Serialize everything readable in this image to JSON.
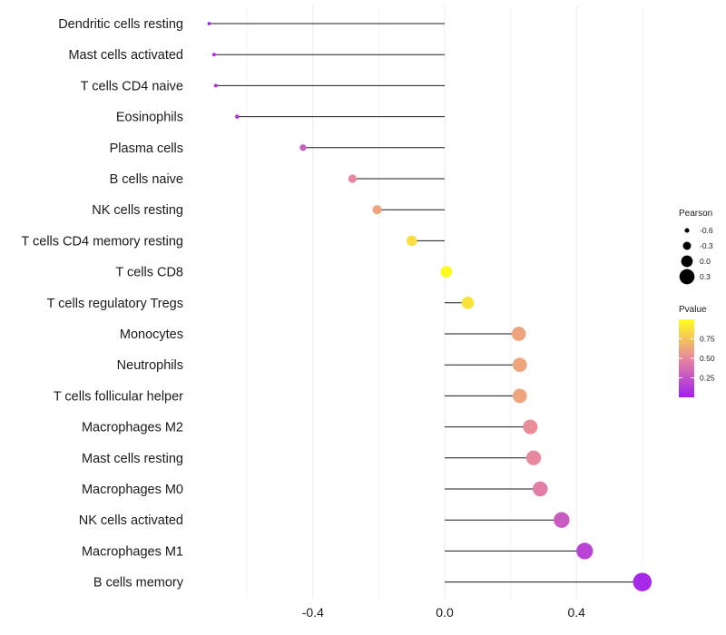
{
  "chart_data": {
    "type": "lollipop",
    "title": "",
    "xlabel": "",
    "ylabel": "",
    "xlim": [
      -0.82,
      0.62
    ],
    "x_ticks": [
      -0.4,
      0.0,
      0.4
    ],
    "x_tick_labels": [
      "-0.4",
      "0.0",
      "0.4"
    ],
    "grid": true,
    "categories": [
      "Dendritic cells resting",
      "Mast cells activated",
      "T cells CD4 naive",
      "Eosinophils",
      "Plasma cells",
      "B cells naive",
      "NK cells resting",
      "T cells CD4 memory resting",
      "T cells CD8",
      "T cells regulatory  Tregs",
      "Monocytes",
      "Neutrophils",
      "T cells follicular helper",
      "Macrophages M2",
      "Mast cells resting",
      "Macrophages M0",
      "NK cells activated",
      "Macrophages M1",
      "B cells memory"
    ],
    "pearson": [
      -0.715,
      -0.7,
      -0.695,
      -0.63,
      -0.43,
      -0.28,
      -0.205,
      -0.1,
      0.005,
      0.07,
      0.225,
      0.228,
      0.228,
      0.26,
      0.27,
      0.29,
      0.355,
      0.425,
      0.6
    ],
    "pvalue": [
      0.02,
      0.05,
      0.06,
      0.12,
      0.3,
      0.5,
      0.62,
      0.86,
      0.98,
      0.88,
      0.62,
      0.62,
      0.62,
      0.52,
      0.5,
      0.45,
      0.28,
      0.17,
      0.04
    ],
    "legend_size": {
      "title": "Pearson",
      "values": [
        -0.6,
        -0.3,
        0.0,
        0.3
      ],
      "labels": [
        "-0.6",
        "-0.3",
        "0.0",
        "0.3"
      ]
    },
    "legend_color": {
      "title": "Pvalue",
      "ticks": [
        0.75,
        0.5,
        0.25
      ],
      "labels": [
        "0.75",
        "0.50",
        "0.25"
      ],
      "range": [
        0.0,
        1.0
      ],
      "low_color": "#a020f0",
      "mid_color": "#e8889e",
      "high_color": "#ffff1a"
    },
    "legend_position": "right"
  }
}
